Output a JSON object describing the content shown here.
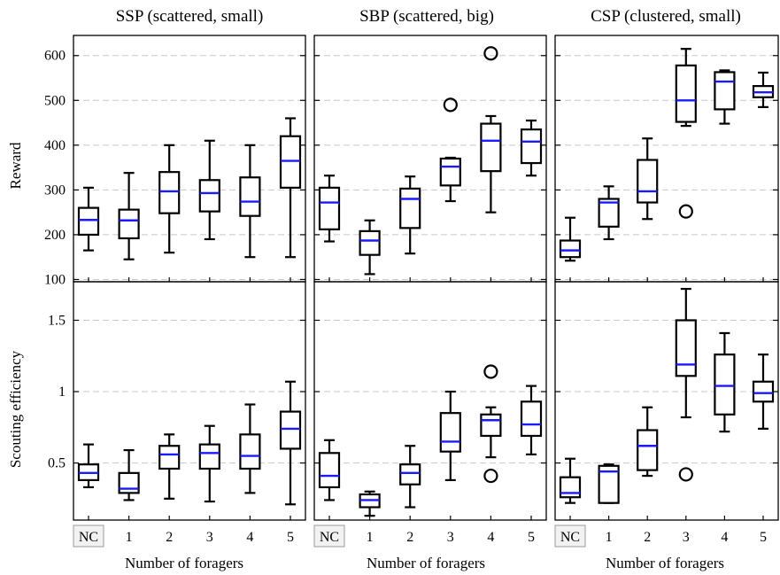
{
  "figure": {
    "panel_titles": [
      "SSP (scattered, small)",
      "SBP (scattered, big)",
      "CSP (clustered, small)"
    ],
    "xlabel": "Number of foragers",
    "row_ylabels": [
      "Reward",
      "Scouting efficiency"
    ]
  },
  "chart_data": [
    {
      "type": "box",
      "row": 0,
      "col": 0,
      "title": "SSP (scattered, small)",
      "ylabel": "Reward",
      "xlabel": "",
      "ylim": [
        95,
        645
      ],
      "yticks": [
        100,
        200,
        300,
        400,
        500,
        600
      ],
      "grid": true,
      "categories": [
        "NC",
        "1",
        "2",
        "3",
        "4",
        "5"
      ],
      "boxes": [
        {
          "min": 165,
          "q1": 200,
          "median": 233,
          "q3": 260,
          "max": 305,
          "fliers": []
        },
        {
          "min": 145,
          "q1": 192,
          "median": 232,
          "q3": 256,
          "max": 338,
          "fliers": []
        },
        {
          "min": 160,
          "q1": 248,
          "median": 297,
          "q3": 340,
          "max": 400,
          "fliers": []
        },
        {
          "min": 190,
          "q1": 252,
          "median": 293,
          "q3": 322,
          "max": 410,
          "fliers": []
        },
        {
          "min": 150,
          "q1": 242,
          "median": 274,
          "q3": 328,
          "max": 400,
          "fliers": []
        },
        {
          "min": 150,
          "q1": 305,
          "median": 365,
          "q3": 420,
          "max": 460,
          "fliers": []
        }
      ]
    },
    {
      "type": "box",
      "row": 0,
      "col": 1,
      "title": "SBP (scattered, big)",
      "ylabel": "",
      "xlabel": "",
      "ylim": [
        95,
        645
      ],
      "yticks": [
        100,
        200,
        300,
        400,
        500,
        600
      ],
      "grid": true,
      "categories": [
        "NC",
        "1",
        "2",
        "3",
        "4",
        "5"
      ],
      "boxes": [
        {
          "min": 185,
          "q1": 212,
          "median": 272,
          "q3": 305,
          "max": 332,
          "fliers": []
        },
        {
          "min": 112,
          "q1": 155,
          "median": 187,
          "q3": 208,
          "max": 232,
          "fliers": []
        },
        {
          "min": 158,
          "q1": 215,
          "median": 280,
          "q3": 303,
          "max": 330,
          "fliers": []
        },
        {
          "min": 275,
          "q1": 310,
          "median": 352,
          "q3": 370,
          "max": 372,
          "fliers": [
            490
          ]
        },
        {
          "min": 250,
          "q1": 342,
          "median": 410,
          "q3": 448,
          "max": 465,
          "fliers": [
            605
          ]
        },
        {
          "min": 332,
          "q1": 360,
          "median": 408,
          "q3": 435,
          "max": 455,
          "fliers": []
        }
      ]
    },
    {
      "type": "box",
      "row": 0,
      "col": 2,
      "title": "CSP (clustered, small)",
      "ylabel": "",
      "xlabel": "",
      "ylim": [
        95,
        645
      ],
      "yticks": [
        100,
        200,
        300,
        400,
        500,
        600
      ],
      "grid": true,
      "categories": [
        "NC",
        "1",
        "2",
        "3",
        "4",
        "5"
      ],
      "boxes": [
        {
          "min": 142,
          "q1": 150,
          "median": 165,
          "q3": 187,
          "max": 238,
          "fliers": []
        },
        {
          "min": 190,
          "q1": 218,
          "median": 272,
          "q3": 280,
          "max": 308,
          "fliers": []
        },
        {
          "min": 235,
          "q1": 272,
          "median": 297,
          "q3": 367,
          "max": 415,
          "fliers": []
        },
        {
          "min": 443,
          "q1": 452,
          "median": 500,
          "q3": 578,
          "max": 615,
          "fliers": [
            252
          ]
        },
        {
          "min": 448,
          "q1": 480,
          "median": 542,
          "q3": 563,
          "max": 567,
          "fliers": []
        },
        {
          "min": 485,
          "q1": 507,
          "median": 518,
          "q3": 532,
          "max": 562,
          "fliers": []
        }
      ]
    },
    {
      "type": "box",
      "row": 1,
      "col": 0,
      "title": "",
      "ylabel": "Scouting efficiency",
      "xlabel": "Number of foragers",
      "ylim": [
        0.1,
        1.77
      ],
      "yticks": [
        0.5,
        1.0,
        1.5
      ],
      "grid": true,
      "categories": [
        "NC",
        "1",
        "2",
        "3",
        "4",
        "5"
      ],
      "boxes": [
        {
          "min": 0.33,
          "q1": 0.38,
          "median": 0.43,
          "q3": 0.49,
          "max": 0.63,
          "fliers": []
        },
        {
          "min": 0.24,
          "q1": 0.29,
          "median": 0.32,
          "q3": 0.43,
          "max": 0.59,
          "fliers": []
        },
        {
          "min": 0.25,
          "q1": 0.46,
          "median": 0.56,
          "q3": 0.62,
          "max": 0.7,
          "fliers": []
        },
        {
          "min": 0.23,
          "q1": 0.46,
          "median": 0.57,
          "q3": 0.63,
          "max": 0.76,
          "fliers": []
        },
        {
          "min": 0.29,
          "q1": 0.46,
          "median": 0.55,
          "q3": 0.7,
          "max": 0.91,
          "fliers": []
        },
        {
          "min": 0.21,
          "q1": 0.6,
          "median": 0.74,
          "q3": 0.86,
          "max": 1.07,
          "fliers": []
        }
      ]
    },
    {
      "type": "box",
      "row": 1,
      "col": 1,
      "title": "",
      "ylabel": "",
      "xlabel": "Number of foragers",
      "ylim": [
        0.1,
        1.77
      ],
      "yticks": [
        0.5,
        1.0,
        1.5
      ],
      "grid": true,
      "categories": [
        "NC",
        "1",
        "2",
        "3",
        "4",
        "5"
      ],
      "boxes": [
        {
          "min": 0.24,
          "q1": 0.33,
          "median": 0.41,
          "q3": 0.57,
          "max": 0.66,
          "fliers": []
        },
        {
          "min": 0.13,
          "q1": 0.19,
          "median": 0.24,
          "q3": 0.28,
          "max": 0.3,
          "fliers": []
        },
        {
          "min": 0.19,
          "q1": 0.35,
          "median": 0.43,
          "q3": 0.49,
          "max": 0.62,
          "fliers": []
        },
        {
          "min": 0.38,
          "q1": 0.58,
          "median": 0.65,
          "q3": 0.85,
          "max": 1.0,
          "fliers": []
        },
        {
          "min": 0.54,
          "q1": 0.69,
          "median": 0.8,
          "q3": 0.84,
          "max": 0.89,
          "fliers": [
            1.14,
            0.41
          ]
        },
        {
          "min": 0.56,
          "q1": 0.69,
          "median": 0.77,
          "q3": 0.93,
          "max": 1.04,
          "fliers": []
        }
      ]
    },
    {
      "type": "box",
      "row": 1,
      "col": 2,
      "title": "",
      "ylabel": "",
      "xlabel": "Number of foragers",
      "ylim": [
        0.1,
        1.77
      ],
      "yticks": [
        0.5,
        1.0,
        1.5
      ],
      "grid": true,
      "categories": [
        "NC",
        "1",
        "2",
        "3",
        "4",
        "5"
      ],
      "boxes": [
        {
          "min": 0.22,
          "q1": 0.26,
          "median": 0.29,
          "q3": 0.4,
          "max": 0.53,
          "fliers": []
        },
        {
          "min": 0.22,
          "q1": 0.22,
          "median": 0.44,
          "q3": 0.48,
          "max": 0.49,
          "fliers": []
        },
        {
          "min": 0.41,
          "q1": 0.45,
          "median": 0.62,
          "q3": 0.73,
          "max": 0.89,
          "fliers": []
        },
        {
          "min": 0.82,
          "q1": 1.11,
          "median": 1.19,
          "q3": 1.5,
          "max": 1.72,
          "fliers": [
            0.42
          ]
        },
        {
          "min": 0.72,
          "q1": 0.84,
          "median": 1.04,
          "q3": 1.26,
          "max": 1.41,
          "fliers": []
        },
        {
          "min": 0.74,
          "q1": 0.93,
          "median": 0.99,
          "q3": 1.07,
          "max": 1.26,
          "fliers": []
        }
      ]
    }
  ]
}
